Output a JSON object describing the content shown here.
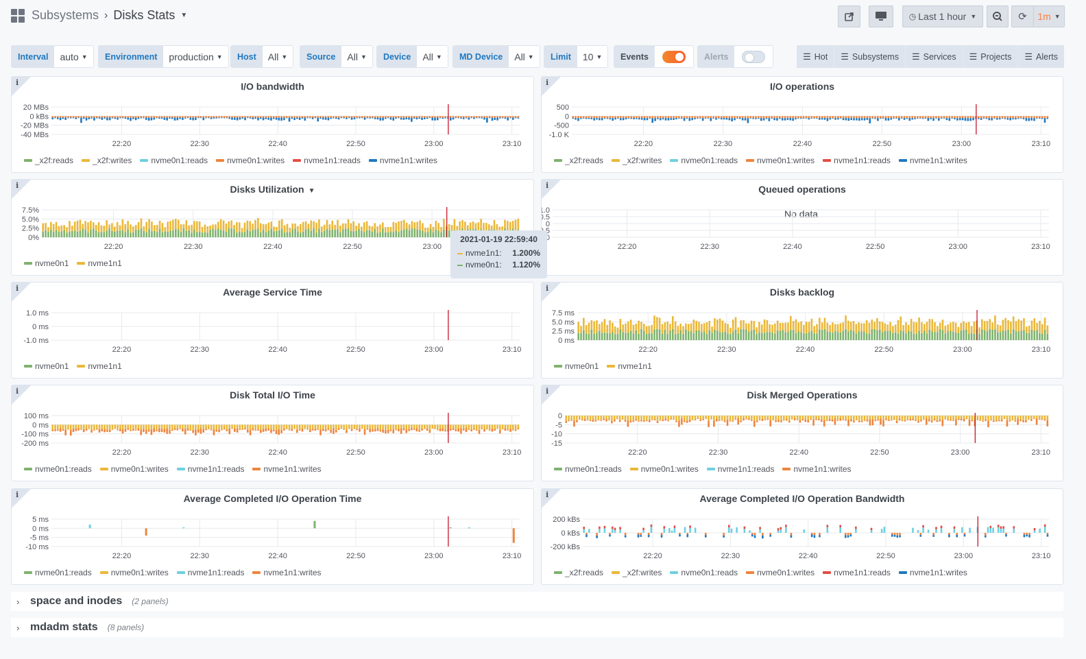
{
  "header": {
    "parent": "Subsystems",
    "title": "Disks Stats",
    "time_range": "Last 1 hour",
    "refresh": "1m"
  },
  "variables": [
    {
      "label": "Interval",
      "value": "auto"
    },
    {
      "label": "Environment",
      "value": "production"
    },
    {
      "label": "Host",
      "value": "All"
    },
    {
      "label": "Source",
      "value": "All"
    },
    {
      "label": "Device",
      "value": "All"
    },
    {
      "label": "MD Device",
      "value": "All"
    },
    {
      "label": "Limit",
      "value": "10"
    }
  ],
  "toggles": [
    {
      "label": "Events",
      "on": true
    },
    {
      "label": "Alerts",
      "on": false
    }
  ],
  "links": [
    "Hot",
    "Subsystems",
    "Services",
    "Projects",
    "Alerts"
  ],
  "colors": {
    "green": "#7eb26d",
    "yellow": "#eab839",
    "cyan": "#6ed0e0",
    "orange": "#ef843c",
    "red": "#e24d42",
    "blue": "#1f78c1",
    "annotation": "#c4162a"
  },
  "tooltip": {
    "time": "2021-01-19 22:59:40",
    "rows": [
      {
        "name": "nvme1n1:",
        "value": "1.200%",
        "color": "#eab839"
      },
      {
        "name": "nvme0n1:",
        "value": "1.120%",
        "color": "#7eb26d"
      }
    ]
  },
  "rows": [
    {
      "title": "space and inodes",
      "count": "(2 panels)"
    },
    {
      "title": "mdadm stats",
      "count": "(8 panels)"
    }
  ],
  "chart_data": [
    {
      "type": "bar",
      "title": "I/O bandwidth",
      "yticks": [
        "20 MBs",
        "0 kBs",
        "-20 MBs",
        "-40 MBs"
      ],
      "ylim": [
        -40,
        20
      ],
      "xticks": [
        "22:20",
        "22:30",
        "22:40",
        "22:50",
        "23:00",
        "23:10"
      ],
      "legend": [
        {
          "name": "_x2f:reads",
          "color": "#7eb26d"
        },
        {
          "name": "_x2f:writes",
          "color": "#eab839"
        },
        {
          "name": "nvme0n1:reads",
          "color": "#6ed0e0"
        },
        {
          "name": "nvme0n1:writes",
          "color": "#ef843c"
        },
        {
          "name": "nvme1n1:reads",
          "color": "#e24d42"
        },
        {
          "name": "nvme1n1:writes",
          "color": "#1f78c1"
        }
      ],
      "pattern": "neg2",
      "approx_range": [
        -15,
        -3
      ]
    },
    {
      "type": "bar",
      "title": "I/O operations",
      "yticks": [
        "500",
        "0",
        "-500",
        "-1.0 K"
      ],
      "ylim": [
        -1000,
        500
      ],
      "xticks": [
        "22:20",
        "22:30",
        "22:40",
        "22:50",
        "23:00",
        "23:10"
      ],
      "legend": [
        {
          "name": "_x2f:reads",
          "color": "#7eb26d"
        },
        {
          "name": "_x2f:writes",
          "color": "#eab839"
        },
        {
          "name": "nvme0n1:reads",
          "color": "#6ed0e0"
        },
        {
          "name": "nvme0n1:writes",
          "color": "#ef843c"
        },
        {
          "name": "nvme1n1:reads",
          "color": "#e24d42"
        },
        {
          "name": "nvme1n1:writes",
          "color": "#1f78c1"
        }
      ],
      "pattern": "neg2",
      "approx_range": [
        -400,
        -100
      ]
    },
    {
      "type": "bar",
      "title": "Disks Utilization",
      "has_menu": true,
      "yticks": [
        "7.5%",
        "5.0%",
        "2.5%",
        "0%"
      ],
      "ylim": [
        0,
        7.5
      ],
      "xticks": [
        "22:20",
        "22:30",
        "22:40",
        "22:50",
        "23:00"
      ],
      "legend": [
        {
          "name": "nvme0n1",
          "color": "#7eb26d"
        },
        {
          "name": "nvme1n1",
          "color": "#eab839"
        }
      ],
      "pattern": "pos2",
      "approx_range": [
        2.0,
        5.5
      ]
    },
    {
      "type": "bar",
      "title": "Queued operations",
      "yticks": [
        "1.0",
        "0.5",
        "0",
        "-0.5",
        "-1.0"
      ],
      "ylim": [
        -1,
        1
      ],
      "xticks": [
        "22:20",
        "22:30",
        "22:40",
        "22:50",
        "23:00",
        "23:10"
      ],
      "legend": [],
      "pattern": "none",
      "no_data": "No data"
    },
    {
      "type": "bar",
      "title": "Average Service Time",
      "yticks": [
        "1.0 ms",
        "0 ms",
        "-1.0 ms"
      ],
      "ylim": [
        -1,
        1
      ],
      "xticks": [
        "22:20",
        "22:30",
        "22:40",
        "22:50",
        "23:00",
        "23:10"
      ],
      "legend": [
        {
          "name": "nvme0n1",
          "color": "#7eb26d"
        },
        {
          "name": "nvme1n1",
          "color": "#eab839"
        }
      ],
      "pattern": "none"
    },
    {
      "type": "bar",
      "title": "Disks backlog",
      "yticks": [
        "7.5 ms",
        "5.0 ms",
        "2.5 ms",
        "0 ms"
      ],
      "ylim": [
        0,
        7.5
      ],
      "xticks": [
        "22:20",
        "22:30",
        "22:40",
        "22:50",
        "23:00",
        "23:10"
      ],
      "legend": [
        {
          "name": "nvme0n1",
          "color": "#7eb26d"
        },
        {
          "name": "nvme1n1",
          "color": "#eab839"
        }
      ],
      "pattern": "pos2",
      "approx_range": [
        3.0,
        7.0
      ]
    },
    {
      "type": "bar",
      "title": "Disk Total I/O Time",
      "yticks": [
        "100 ms",
        "0 ms",
        "-100 ms",
        "-200 ms"
      ],
      "ylim": [
        -200,
        100
      ],
      "xticks": [
        "22:20",
        "22:30",
        "22:40",
        "22:50",
        "23:00",
        "23:10"
      ],
      "legend": [
        {
          "name": "nvme0n1:reads",
          "color": "#7eb26d"
        },
        {
          "name": "nvme0n1:writes",
          "color": "#eab839"
        },
        {
          "name": "nvme1n1:reads",
          "color": "#6ed0e0"
        },
        {
          "name": "nvme1n1:writes",
          "color": "#ef843c"
        }
      ],
      "pattern": "neg3",
      "approx_range": [
        -130,
        -60
      ]
    },
    {
      "type": "bar",
      "title": "Disk Merged Operations",
      "yticks": [
        "0",
        "-5",
        "-10",
        "-15"
      ],
      "ylim": [
        -15,
        0
      ],
      "xticks": [
        "22:20",
        "22:30",
        "22:40",
        "22:50",
        "23:00",
        "23:10"
      ],
      "legend": [
        {
          "name": "nvme0n1:reads",
          "color": "#7eb26d"
        },
        {
          "name": "nvme0n1:writes",
          "color": "#eab839"
        },
        {
          "name": "nvme1n1:reads",
          "color": "#6ed0e0"
        },
        {
          "name": "nvme1n1:writes",
          "color": "#ef843c"
        }
      ],
      "pattern": "neg3b",
      "approx_range": [
        -7,
        -3
      ]
    },
    {
      "type": "bar",
      "title": "Average Completed I/O Operation Time",
      "yticks": [
        "5 ms",
        "0 ms",
        "-5 ms",
        "-10 ms"
      ],
      "ylim": [
        -10,
        5
      ],
      "xticks": [
        "22:20",
        "22:30",
        "22:40",
        "22:50",
        "23:00",
        "23:10"
      ],
      "legend": [
        {
          "name": "nvme0n1:reads",
          "color": "#7eb26d"
        },
        {
          "name": "nvme0n1:writes",
          "color": "#eab839"
        },
        {
          "name": "nvme1n1:reads",
          "color": "#6ed0e0"
        },
        {
          "name": "nvme1n1:writes",
          "color": "#ef843c"
        }
      ],
      "pattern": "sparse",
      "points": [
        {
          "t": 0.08,
          "v": 2,
          "c": "#6ed0e0"
        },
        {
          "t": 0.2,
          "v": -4,
          "c": "#ef843c"
        },
        {
          "t": 0.28,
          "v": 0.5,
          "c": "#6ed0e0"
        },
        {
          "t": 0.56,
          "v": 4,
          "c": "#7eb26d"
        },
        {
          "t": 0.85,
          "v": 0.5,
          "c": "#7eb26d"
        },
        {
          "t": 0.89,
          "v": 0.5,
          "c": "#6ed0e0"
        },
        {
          "t": 0.985,
          "v": -8,
          "c": "#ef843c"
        }
      ]
    },
    {
      "type": "bar",
      "title": "Average Completed I/O Operation Bandwidth",
      "yticks": [
        "200 kBs",
        "0 kBs",
        "-200 kBs"
      ],
      "ylim": [
        -200,
        200
      ],
      "xticks": [
        "22:20",
        "22:30",
        "22:40",
        "22:50",
        "23:00",
        "23:10"
      ],
      "legend": [
        {
          "name": "_x2f:reads",
          "color": "#7eb26d"
        },
        {
          "name": "_x2f:writes",
          "color": "#eab839"
        },
        {
          "name": "nvme0n1:reads",
          "color": "#6ed0e0"
        },
        {
          "name": "nvme0n1:writes",
          "color": "#ef843c"
        },
        {
          "name": "nvme1n1:reads",
          "color": "#e24d42"
        },
        {
          "name": "nvme1n1:writes",
          "color": "#1f78c1"
        }
      ],
      "pattern": "mixed",
      "approx_range": [
        -100,
        100
      ]
    }
  ]
}
